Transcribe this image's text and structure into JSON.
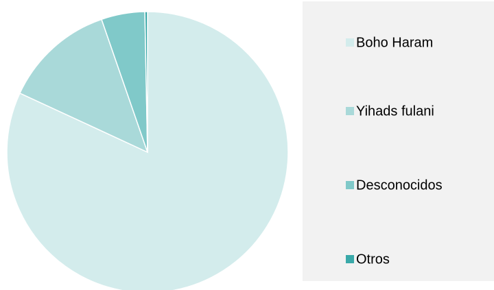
{
  "chart_data": {
    "type": "pie",
    "categories": [
      "Boho Haram",
      "Yihads fulani",
      "Desconocidos",
      "Otros"
    ],
    "values": [
      81.9,
      12.8,
      5.0,
      0.3
    ],
    "colors": [
      "#d3ecec",
      "#a9d9d9",
      "#80c9c9",
      "#3aa9a9"
    ],
    "legend": "right"
  }
}
